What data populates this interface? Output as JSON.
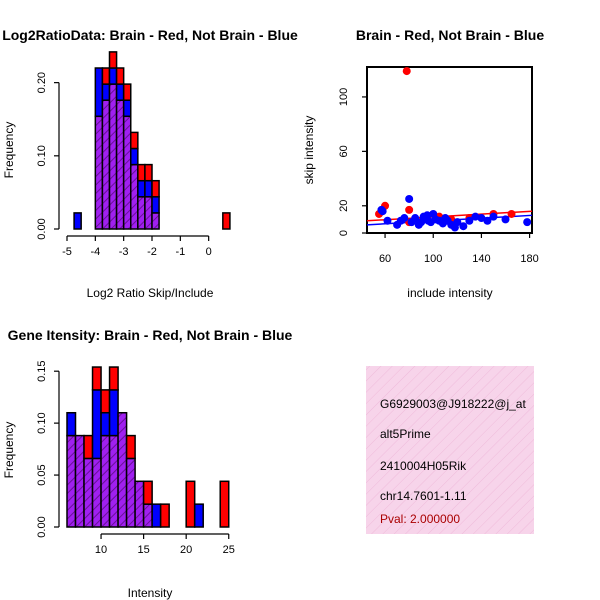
{
  "chart_data": [
    {
      "type": "bar",
      "title": "Log2RatioData: Brain - Red, Not Brain - Blue",
      "xlabel": "Log2 Ratio Skip/Include",
      "ylabel": "Frequency",
      "xlim": [
        -5,
        1
      ],
      "ylim": [
        0,
        0.22
      ],
      "xticks": [
        "-5",
        "-4",
        "-3",
        "-2",
        "-1",
        "0"
      ],
      "yticks": [
        "0.00",
        "0.10",
        "0.20"
      ],
      "bin_start": -4.75,
      "bin_width": 0.25,
      "bin_count": 22,
      "series": [
        {
          "name": "Brain",
          "color": "#ff0000",
          "values": [
            0,
            0,
            0,
            0,
            0.022,
            0.022,
            0.022,
            0.022,
            0.022,
            0.022,
            0.022,
            0.022,
            0,
            0,
            0,
            0,
            0,
            0,
            0,
            0,
            0,
            0.022
          ]
        },
        {
          "name": "Not Brain",
          "color": "#0000ff",
          "values": [
            0.022,
            0,
            0,
            0.066,
            0.022,
            0.022,
            0.022,
            0.022,
            0.022,
            0.022,
            0.022,
            0.022,
            0,
            0,
            0,
            0,
            0,
            0,
            0,
            0,
            0,
            0
          ]
        },
        {
          "name": "Overlap",
          "color": "#a020f0",
          "values": [
            0,
            0,
            0,
            0.154,
            0.176,
            0.198,
            0.176,
            0.154,
            0.088,
            0.044,
            0.044,
            0.022,
            0,
            0,
            0,
            0,
            0,
            0,
            0,
            0,
            0,
            0
          ]
        }
      ],
      "bar_tops": [
        {
          "x": -4.625,
          "v": 0.044,
          "c": "b"
        },
        {
          "x": -4.125,
          "v": 0.154,
          "c": "b"
        },
        {
          "x": -3.875,
          "v": 0.22,
          "c": "r"
        },
        {
          "x": -3.625,
          "v": 0.198,
          "c": "r"
        },
        {
          "x": -3.375,
          "v": 0.176,
          "c": "r"
        },
        {
          "x": -3.125,
          "v": 0.132,
          "c": "b"
        },
        {
          "x": -2.875,
          "v": 0.132,
          "c": "b"
        },
        {
          "x": -2.625,
          "v": 0.044,
          "c": "r"
        },
        {
          "x": -2.375,
          "v": 0.044,
          "c": "r"
        },
        {
          "x": -2.125,
          "v": 0.044,
          "c": "r"
        },
        {
          "x": -1.875,
          "v": 0.044,
          "c": "r"
        },
        {
          "x": 0.375,
          "v": 0.044,
          "c": "r"
        }
      ]
    },
    {
      "type": "scatter",
      "title": "Brain - Red, Not Brain - Blue",
      "xlabel": "include intensity",
      "ylabel": "skip intensity",
      "xlim": [
        45,
        182
      ],
      "ylim": [
        0,
        122
      ],
      "xticks": [
        "60",
        "100",
        "140",
        "180"
      ],
      "yticks": [
        "0",
        "20",
        "60",
        "100"
      ],
      "series": [
        {
          "name": "Brain",
          "color": "#ff0000",
          "points": [
            [
              55,
              14
            ],
            [
              60,
              20
            ],
            [
              78,
              119
            ],
            [
              80,
              17
            ],
            [
              80,
              8
            ],
            [
              95,
              10
            ],
            [
              105,
              12
            ],
            [
              115,
              10
            ],
            [
              130,
              11
            ],
            [
              150,
              14
            ],
            [
              165,
              14
            ]
          ]
        },
        {
          "name": "Not Brain",
          "color": "#0000ff",
          "points": [
            [
              57,
              17
            ],
            [
              58,
              16
            ],
            [
              62,
              9
            ],
            [
              70,
              6
            ],
            [
              73,
              9
            ],
            [
              76,
              11
            ],
            [
              80,
              25
            ],
            [
              82,
              8
            ],
            [
              85,
              11
            ],
            [
              88,
              6
            ],
            [
              90,
              8
            ],
            [
              92,
              12
            ],
            [
              95,
              13
            ],
            [
              96,
              9
            ],
            [
              98,
              8
            ],
            [
              100,
              14
            ],
            [
              102,
              10
            ],
            [
              105,
              9
            ],
            [
              108,
              7
            ],
            [
              110,
              11
            ],
            [
              112,
              9
            ],
            [
              115,
              6
            ],
            [
              118,
              4
            ],
            [
              120,
              8
            ],
            [
              125,
              5
            ],
            [
              130,
              9
            ],
            [
              135,
              12
            ],
            [
              140,
              11
            ],
            [
              145,
              9
            ],
            [
              150,
              12
            ],
            [
              160,
              10
            ],
            [
              178,
              8
            ]
          ]
        }
      ],
      "fit_lines": [
        {
          "color": "#ff0000",
          "points": [
            [
              45,
              9
            ],
            [
              182,
              16
            ]
          ]
        },
        {
          "color": "#0000ff",
          "points": [
            [
              45,
              6
            ],
            [
              182,
              13
            ]
          ]
        }
      ]
    },
    {
      "type": "bar",
      "title": "Gene Itensity: Brain - Red, Not Brain - Blue",
      "xlabel": "Intensity",
      "ylabel": "Frequency",
      "xlim": [
        6,
        25.5
      ],
      "ylim": [
        0,
        0.155
      ],
      "xticks": [
        "10",
        "15",
        "20",
        "25"
      ],
      "yticks": [
        "0.00",
        "0.05",
        "0.10",
        "0.15"
      ],
      "bin_start": 6,
      "bin_width": 1,
      "bin_count": 19,
      "series": [
        {
          "name": "Brain",
          "color": "#ff0000",
          "values": [
            0,
            0,
            0.022,
            0.022,
            0.022,
            0.022,
            0,
            0.022,
            0,
            0.022,
            0,
            0.022,
            0,
            0,
            0.044,
            0,
            0,
            0,
            0.044
          ]
        },
        {
          "name": "Not Brain",
          "color": "#0000ff",
          "values": [
            0.022,
            0,
            0,
            0.066,
            0.022,
            0.044,
            0,
            0,
            0,
            0,
            0.022,
            0,
            0,
            0,
            0,
            0.022,
            0,
            0,
            0
          ]
        },
        {
          "name": "Overlap",
          "color": "#a020f0",
          "values": [
            0.088,
            0.088,
            0.066,
            0.066,
            0.088,
            0.088,
            0.11,
            0.066,
            0.044,
            0.022,
            0,
            0,
            0,
            0,
            0,
            0,
            0,
            0,
            0
          ]
        }
      ],
      "bar_tops": [
        {
          "x": 6.5,
          "v": 0.11,
          "c": "b"
        },
        {
          "x": 7.5,
          "v": 0.088,
          "c": "m"
        },
        {
          "x": 8.5,
          "v": 0.088,
          "c": "r"
        },
        {
          "x": 9.5,
          "v": 0.154,
          "c": "b"
        },
        {
          "x": 10.5,
          "v": 0.132,
          "c": "r"
        },
        {
          "x": 11.5,
          "v": 0.154,
          "c": "b"
        },
        {
          "x": 12.5,
          "v": 0.11,
          "c": "m"
        },
        {
          "x": 13.5,
          "v": 0.088,
          "c": "r"
        },
        {
          "x": 14.5,
          "v": 0.044,
          "c": "m"
        },
        {
          "x": 15.5,
          "v": 0.022,
          "c": "b"
        },
        {
          "x": 16.5,
          "v": 0.044,
          "c": "r"
        },
        {
          "x": 20.5,
          "v": 0.044,
          "c": "r"
        },
        {
          "x": 21.5,
          "v": 0.022,
          "c": "b"
        },
        {
          "x": 24.5,
          "v": 0.044,
          "c": "r"
        }
      ]
    }
  ],
  "info_panel": {
    "lines": [
      "G6929003@J918222@j_at",
      "alt5Prime",
      "2410004H05Rik",
      "chr14.7601-1.11"
    ],
    "pval": "Pval: 2.000000",
    "pval_color": "#aa0000",
    "background": "#f7d4ea"
  }
}
